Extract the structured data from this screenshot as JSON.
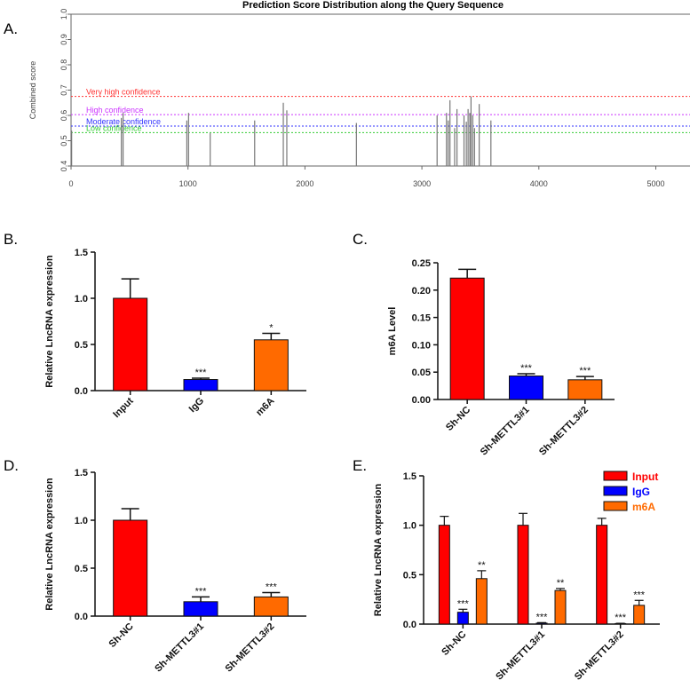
{
  "panels": {
    "A": "A.",
    "B": "B.",
    "C": "C.",
    "D": "D.",
    "E": "E."
  },
  "chart_data": [
    {
      "id": "A",
      "type": "line",
      "title": "Prediction Score Distribution along the Query Sequence",
      "xlabel": "",
      "ylabel": "Combined score",
      "xlim": [
        0,
        5300
      ],
      "ylim": [
        0.4,
        1.0
      ],
      "x_ticks": [
        "0",
        "1000",
        "2000",
        "3000",
        "4000",
        "5000"
      ],
      "x_tick_values": [
        0,
        1000,
        2000,
        3000,
        4000,
        5000
      ],
      "y_ticks": [
        "0.4",
        "0.5",
        "0.6",
        "0.7",
        "0.8",
        "0.9",
        "1.0"
      ],
      "y_tick_values": [
        0.4,
        0.5,
        0.6,
        0.7,
        0.8,
        0.9,
        1.0
      ],
      "thresholds": [
        {
          "label": "Very high confidence",
          "value": 0.675,
          "color": "#ff3333"
        },
        {
          "label": "High confidence",
          "value": 0.603,
          "color": "#cc33ff"
        },
        {
          "label": "Moderate confidence",
          "value": 0.558,
          "color": "#3333ff"
        },
        {
          "label": "Low confidence",
          "value": 0.532,
          "color": "#33cc33"
        }
      ],
      "sites": [
        {
          "x": 5,
          "y": 0.54
        },
        {
          "x": 430,
          "y": 0.59
        },
        {
          "x": 445,
          "y": 0.61
        },
        {
          "x": 990,
          "y": 0.58
        },
        {
          "x": 1005,
          "y": 0.61
        },
        {
          "x": 1190,
          "y": 0.53
        },
        {
          "x": 1570,
          "y": 0.58
        },
        {
          "x": 1815,
          "y": 0.65
        },
        {
          "x": 1845,
          "y": 0.62
        },
        {
          "x": 2440,
          "y": 0.57
        },
        {
          "x": 3130,
          "y": 0.6
        },
        {
          "x": 3210,
          "y": 0.61
        },
        {
          "x": 3225,
          "y": 0.58
        },
        {
          "x": 3240,
          "y": 0.66
        },
        {
          "x": 3280,
          "y": 0.55
        },
        {
          "x": 3300,
          "y": 0.625
        },
        {
          "x": 3360,
          "y": 0.6
        },
        {
          "x": 3380,
          "y": 0.575
        },
        {
          "x": 3395,
          "y": 0.625
        },
        {
          "x": 3410,
          "y": 0.61
        },
        {
          "x": 3420,
          "y": 0.675
        },
        {
          "x": 3435,
          "y": 0.6
        },
        {
          "x": 3450,
          "y": 0.55
        },
        {
          "x": 3490,
          "y": 0.645
        },
        {
          "x": 3590,
          "y": 0.58
        }
      ]
    },
    {
      "id": "B",
      "type": "bar",
      "title": "",
      "xlabel": "",
      "ylabel": "Relative LncRNA expression",
      "ylim": [
        0,
        1.5
      ],
      "y_ticks": [
        "0.0",
        "0.5",
        "1.0",
        "1.5"
      ],
      "y_tick_values": [
        0,
        0.5,
        1.0,
        1.5
      ],
      "categories": [
        "Input",
        "IgG",
        "m6A"
      ],
      "values": [
        1.0,
        0.12,
        0.55
      ],
      "errors": [
        0.21,
        0.015,
        0.07
      ],
      "colors": [
        "#ff0000",
        "#0000ff",
        "#ff6a00"
      ],
      "significance": [
        "",
        "***",
        "*"
      ]
    },
    {
      "id": "C",
      "type": "bar",
      "title": "",
      "xlabel": "",
      "ylabel": "m6A Level",
      "ylim": [
        0,
        0.25
      ],
      "y_ticks": [
        "0.00",
        "0.05",
        "0.10",
        "0.15",
        "0.20",
        "0.25"
      ],
      "y_tick_values": [
        0,
        0.05,
        0.1,
        0.15,
        0.2,
        0.25
      ],
      "categories": [
        "Sh-NC",
        "Sh-METTL3#1",
        "Sh-METTL3#2"
      ],
      "values": [
        0.222,
        0.043,
        0.036
      ],
      "errors": [
        0.016,
        0.004,
        0.006
      ],
      "colors": [
        "#ff0000",
        "#0000ff",
        "#ff6a00"
      ],
      "significance": [
        "",
        "***",
        "***"
      ]
    },
    {
      "id": "D",
      "type": "bar",
      "title": "",
      "xlabel": "",
      "ylabel": "Relative LncRNA expression",
      "ylim": [
        0,
        1.5
      ],
      "y_ticks": [
        "0.0",
        "0.5",
        "1.0",
        "1.5"
      ],
      "y_tick_values": [
        0,
        0.5,
        1.0,
        1.5
      ],
      "categories": [
        "Sh-NC",
        "Sh-METTL3#1",
        "Sh-METTL3#2"
      ],
      "values": [
        1.0,
        0.15,
        0.2
      ],
      "errors": [
        0.12,
        0.05,
        0.045
      ],
      "colors": [
        "#ff0000",
        "#0000ff",
        "#ff6a00"
      ],
      "significance": [
        "",
        "***",
        "***"
      ]
    },
    {
      "id": "E",
      "type": "bar",
      "title": "",
      "xlabel": "",
      "ylabel": "Relative LncRNA expression",
      "ylim": [
        0,
        1.5
      ],
      "y_ticks": [
        "0.0",
        "0.5",
        "1.0",
        "1.5"
      ],
      "y_tick_values": [
        0,
        0.5,
        1.0,
        1.5
      ],
      "categories": [
        "Sh-NC",
        "Sh-METTL3#1",
        "Sh-METTL3#2"
      ],
      "legend_position": "top-right",
      "series": [
        {
          "name": "Input",
          "color": "#ff0000",
          "values": [
            1.0,
            1.0,
            1.0
          ],
          "errors": [
            0.09,
            0.12,
            0.07
          ],
          "significance": [
            "",
            "",
            ""
          ]
        },
        {
          "name": "IgG",
          "color": "#0000ff",
          "values": [
            0.12,
            0.01,
            0.005
          ],
          "errors": [
            0.03,
            0.005,
            0.003
          ],
          "significance": [
            "***",
            "***",
            "***"
          ]
        },
        {
          "name": "m6A",
          "color": "#ff6a00",
          "values": [
            0.46,
            0.34,
            0.19
          ],
          "errors": [
            0.08,
            0.02,
            0.05
          ],
          "significance": [
            "**",
            "**",
            "***"
          ]
        }
      ]
    }
  ]
}
